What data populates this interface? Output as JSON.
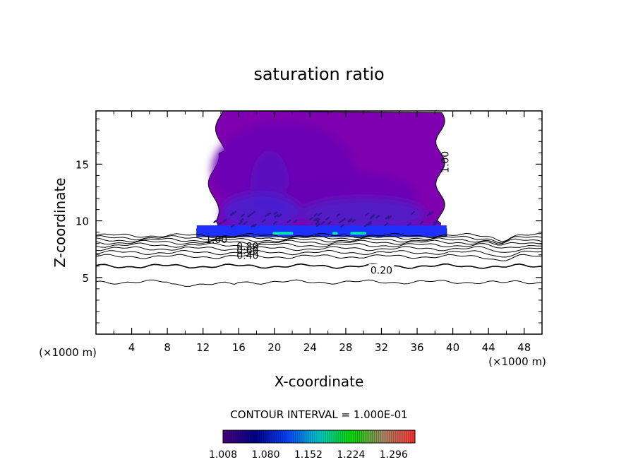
{
  "chart_data": {
    "type": "heatmap",
    "title": "saturation ratio",
    "xlabel": "X-coordinate",
    "ylabel": "Z-coordinate",
    "x_unit": "(×1000 m)",
    "y_unit": "(×1000 m)",
    "xlim": [
      0,
      50
    ],
    "ylim": [
      0,
      19.7
    ],
    "x_ticks": [
      "4",
      "8",
      "12",
      "16",
      "20",
      "24",
      "28",
      "32",
      "36",
      "40",
      "44",
      "48"
    ],
    "y_ticks": [
      "5",
      "10",
      "15"
    ],
    "contour_interval_text": "CONTOUR INTERVAL = 1.000E-01",
    "contour_labels": [
      {
        "text": "1.00",
        "x": 13.5,
        "z": 8.35
      },
      {
        "text": "0.80",
        "x": 17.0,
        "z": 7.75
      },
      {
        "text": "0.60",
        "x": 17.0,
        "z": 7.4
      },
      {
        "text": "0.40",
        "x": 17.0,
        "z": 6.95
      },
      {
        "text": "0.20",
        "x": 32.0,
        "z": 5.65
      },
      {
        "text": "1.00",
        "x": 39.5,
        "z": 15.5
      }
    ],
    "colorbar": {
      "min": 1.008,
      "max": 1.332,
      "tick_labels": [
        "1.008",
        "1.080",
        "1.152",
        "1.224",
        "1.296"
      ],
      "colors": [
        "#4b0082",
        "#00008b",
        "#0044ff",
        "#00cccc",
        "#00dd00",
        "#aa8866",
        "#ff3333"
      ]
    },
    "cloud_region": {
      "x_range": [
        11.3,
        39.3
      ],
      "z_range": [
        8.6,
        19.7
      ]
    },
    "colors": {
      "cloud_base": "#7f00b0",
      "cloud_dark": "#6a00b5",
      "cloud_layer": "#1e30ff",
      "cloud_highlight": "#00e8b0",
      "contour": "#000000"
    }
  }
}
